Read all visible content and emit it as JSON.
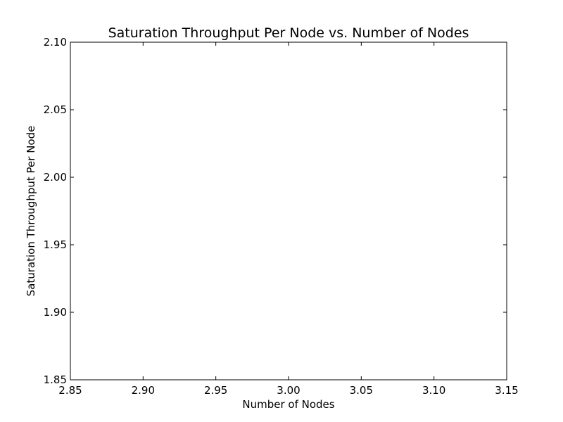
{
  "chart_data": {
    "type": "line",
    "title": "Saturation Throughput Per Node vs. Number of Nodes",
    "xlabel": "Number of Nodes",
    "ylabel": "Saturation Throughput Per Node",
    "xlim": [
      2.85,
      3.15
    ],
    "ylim": [
      1.85,
      2.1
    ],
    "xticks": [
      "2.85",
      "2.90",
      "2.95",
      "3.00",
      "3.05",
      "3.10",
      "3.15"
    ],
    "yticks": [
      "1.85",
      "1.90",
      "1.95",
      "2.00",
      "2.05",
      "2.10"
    ],
    "series": [],
    "grid": false,
    "colors": {
      "axes": "#000000",
      "background": "#ffffff"
    }
  }
}
